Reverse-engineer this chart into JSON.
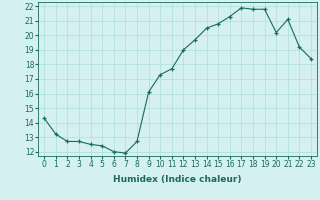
{
  "x": [
    0,
    1,
    2,
    3,
    4,
    5,
    6,
    7,
    8,
    9,
    10,
    11,
    12,
    13,
    14,
    15,
    16,
    17,
    18,
    19,
    20,
    21,
    22,
    23
  ],
  "y": [
    14.3,
    13.2,
    12.7,
    12.7,
    12.5,
    12.4,
    12.0,
    11.9,
    12.7,
    16.1,
    17.3,
    17.7,
    19.0,
    19.7,
    20.5,
    20.8,
    21.3,
    21.9,
    21.8,
    21.8,
    20.2,
    21.1,
    19.2,
    18.4
  ],
  "xlabel": "Humidex (Indice chaleur)",
  "xlim_min": -0.5,
  "xlim_max": 23.5,
  "ylim_min": 11.7,
  "ylim_max": 22.3,
  "yticks": [
    12,
    13,
    14,
    15,
    16,
    17,
    18,
    19,
    20,
    21,
    22
  ],
  "xticks": [
    0,
    1,
    2,
    3,
    4,
    5,
    6,
    7,
    8,
    9,
    10,
    11,
    12,
    13,
    14,
    15,
    16,
    17,
    18,
    19,
    20,
    21,
    22,
    23
  ],
  "line_color": "#1a6b5a",
  "marker": "+",
  "bg_color": "#d4f0f0",
  "grid_color": "#b0dede",
  "tick_labelsize": 5.5,
  "xlabel_fontsize": 6.5
}
